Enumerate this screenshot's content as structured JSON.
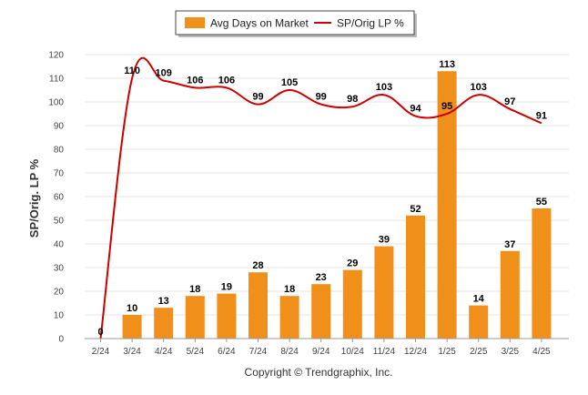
{
  "copyright": "Copyright © Trendgraphix, Inc.",
  "colors": {
    "bar": "#f0901a",
    "line": "#cc0000",
    "grid": "#e6e6e6",
    "axis": "#999999"
  },
  "chart_data": {
    "type": "bar",
    "title": "",
    "xlabel": "",
    "ylabel": "SP/Orig. LP %",
    "ylim": [
      0,
      120
    ],
    "yticks": [
      0,
      10,
      20,
      30,
      40,
      50,
      60,
      70,
      80,
      90,
      100,
      110,
      120
    ],
    "grid": true,
    "legend_position": "top-center",
    "categories": [
      "2/24",
      "3/24",
      "4/24",
      "5/24",
      "6/24",
      "7/24",
      "8/24",
      "9/24",
      "10/24",
      "11/24",
      "12/24",
      "1/25",
      "2/25",
      "3/25",
      "4/25"
    ],
    "series": [
      {
        "name": "Avg Days on Market",
        "type": "bar",
        "values": [
          0,
          10,
          13,
          18,
          19,
          28,
          18,
          23,
          29,
          39,
          52,
          113,
          14,
          37,
          55
        ]
      },
      {
        "name": "SP/Orig LP %",
        "type": "line",
        "values": [
          0,
          110,
          109,
          106,
          106,
          99,
          105,
          99,
          98,
          103,
          94,
          95,
          103,
          97,
          91
        ]
      }
    ]
  }
}
